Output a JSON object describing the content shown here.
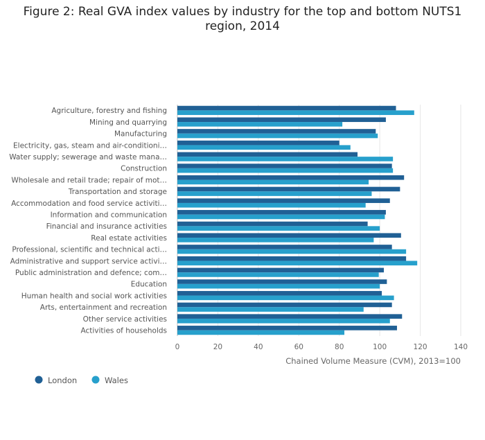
{
  "chart_data": {
    "type": "bar",
    "orientation": "horizontal",
    "title_lines": [
      "Figure 2: Real GVA index values by industry for the top and bottom NUTS1",
      "region, 2014"
    ],
    "xlabel": "Chained Volume Measure (CVM), 2013=100",
    "xlim": [
      0,
      140
    ],
    "xticks": [
      0,
      20,
      40,
      60,
      80,
      100,
      120,
      140
    ],
    "grid": true,
    "legend_position": "bottom-left",
    "categories": [
      "Agriculture, forestry and fishing",
      "Mining and quarrying",
      "Manufacturing",
      "Electricity, gas, steam and air-conditioni…",
      "Water supply; sewerage and waste mana…",
      "Construction",
      "Wholesale and retail trade; repair of mot…",
      "Transportation and storage",
      "Accommodation and food service activiti…",
      "Information and communication",
      "Financial and insurance activities",
      "Real estate activities",
      "Professional, scientific and technical acti…",
      "Administrative and support service activi…",
      "Public administration and defence; com…",
      "Education",
      "Human health and social work activities",
      "Arts, entertainment and recreation",
      "Other service activities",
      "Activities of households"
    ],
    "series": [
      {
        "name": "London",
        "color": "#206095",
        "values": [
          108,
          103,
          98,
          80,
          89,
          106,
          112,
          110,
          105,
          103,
          94,
          110.5,
          106,
          113,
          102,
          103.5,
          101,
          106,
          111,
          108.5
        ]
      },
      {
        "name": "Wales",
        "color": "#27a0cc",
        "values": [
          117,
          81.5,
          99,
          85.5,
          106.5,
          106.5,
          94.5,
          96,
          93,
          102.5,
          100,
          97,
          113,
          118.5,
          99.5,
          100,
          107,
          92,
          105,
          82.5
        ]
      }
    ]
  }
}
